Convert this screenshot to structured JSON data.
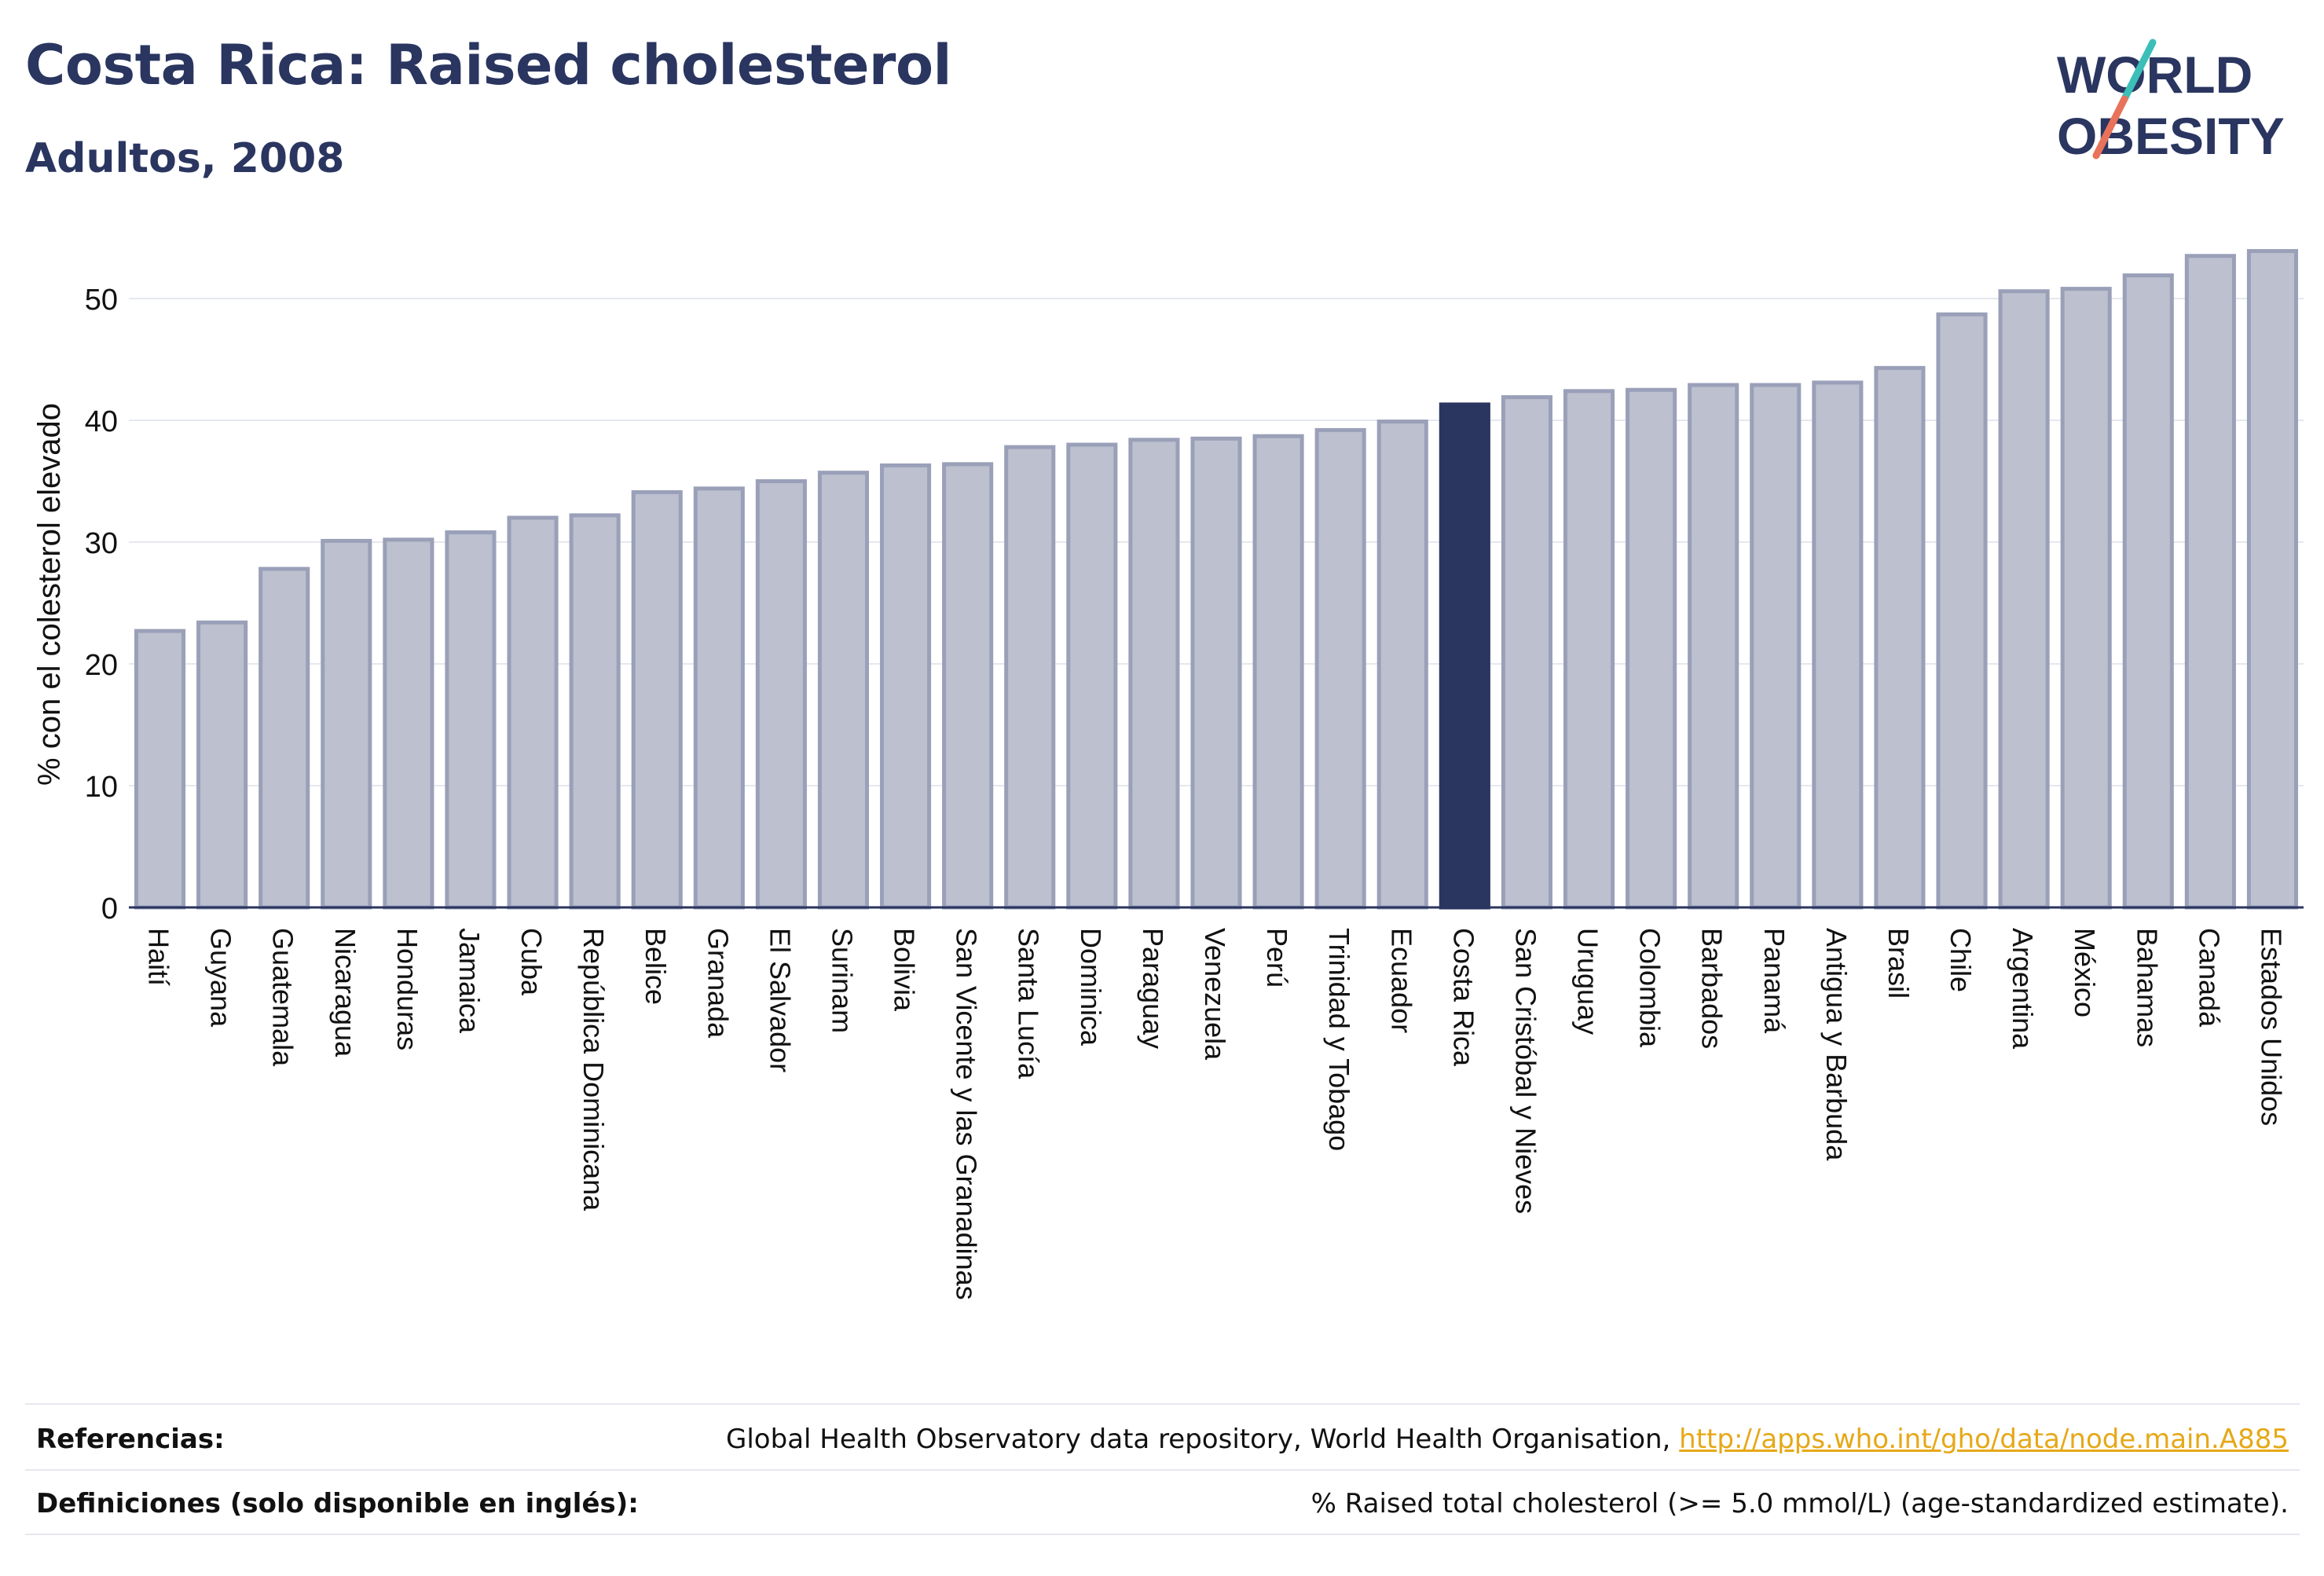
{
  "header": {
    "title": "Costa Rica: Raised cholesterol",
    "subtitle": "Adultos, 2008"
  },
  "logo": {
    "line1": "WORLD",
    "line2": "OBESITY"
  },
  "colors": {
    "highlight": "#2a3560",
    "bar_fill": "#bcc0cf",
    "bar_stroke": "#9aa0b8",
    "accent_teal": "#3bbfb8",
    "accent_coral": "#e8735a"
  },
  "chart_data": {
    "type": "bar",
    "ylabel": "% con el colesterol elevado",
    "ylim": [
      0,
      54
    ],
    "yticks": [
      0,
      10,
      20,
      30,
      40,
      50
    ],
    "grid": true,
    "highlight": "Costa Rica",
    "categories": [
      "Haití",
      "Guyana",
      "Guatemala",
      "Nicaragua",
      "Honduras",
      "Jamaica",
      "Cuba",
      "República Dominicana",
      "Belice",
      "Granada",
      "El Salvador",
      "Surinam",
      "Bolivia",
      "San Vicente y las Granadinas",
      "Santa Lucía",
      "Dominica",
      "Paraguay",
      "Venezuela",
      "Perú",
      "Trinidad y Tobago",
      "Ecuador",
      "Costa Rica",
      "San Cristóbal y Nieves",
      "Uruguay",
      "Colombia",
      "Barbados",
      "Panamá",
      "Antigua y Barbuda",
      "Brasil",
      "Chile",
      "Argentina",
      "México",
      "Bahamas",
      "Canadá",
      "Estados Unidos"
    ],
    "values": [
      22.7,
      23.4,
      27.8,
      30.1,
      30.2,
      30.8,
      32.0,
      32.2,
      34.1,
      34.4,
      35.0,
      35.7,
      36.3,
      36.4,
      37.8,
      38.0,
      38.4,
      38.5,
      38.7,
      39.2,
      39.9,
      41.3,
      41.9,
      42.4,
      42.5,
      42.9,
      42.9,
      43.1,
      44.3,
      48.7,
      50.6,
      50.8,
      51.9,
      53.5,
      53.9
    ]
  },
  "footer": {
    "ref_label": "Referencias:",
    "ref_text": "Global Health Observatory data repository, World Health Organisation, ",
    "ref_link": "http://apps.who.int/gho/data/node.main.A885",
    "def_label": "Definiciones (solo disponible en inglés):",
    "def_text": "% Raised total cholesterol (>= 5.0 mmol/L) (age-standardized estimate)."
  }
}
